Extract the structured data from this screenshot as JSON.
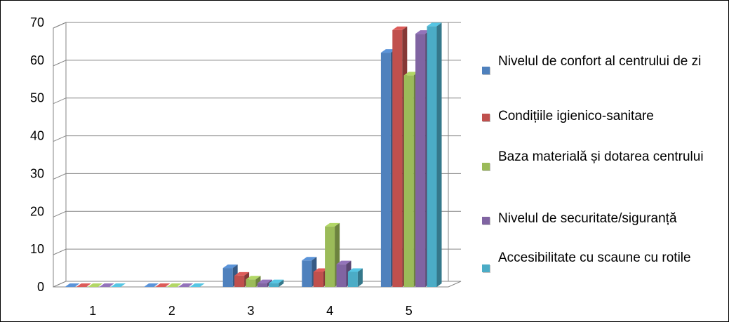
{
  "chart_data": {
    "type": "bar",
    "categories": [
      "1",
      "2",
      "3",
      "4",
      "5"
    ],
    "ylim": [
      0,
      70
    ],
    "yticks": [
      0,
      10,
      20,
      30,
      40,
      50,
      60,
      70
    ],
    "grid": true,
    "legend_position": "right",
    "series": [
      {
        "name": "Nivelul de confort al centrului de zi",
        "color": "#4F81BD",
        "values": [
          0,
          0,
          5,
          7,
          62
        ]
      },
      {
        "name": "Condițiile igienico-sanitare",
        "color": "#C0504D",
        "values": [
          0,
          0,
          3,
          4,
          68
        ]
      },
      {
        "name": "Baza materială și dotarea centrului",
        "color": "#9BBB59",
        "values": [
          0,
          0,
          2,
          16,
          56
        ]
      },
      {
        "name": "Nivelul de securitate/siguranță",
        "color": "#8064A2",
        "values": [
          0,
          0,
          1,
          6,
          67
        ]
      },
      {
        "name": "Accesibilitate cu scaune cu rotile",
        "color": "#4BACC6",
        "values": [
          0,
          0,
          1,
          4,
          69
        ]
      }
    ]
  }
}
